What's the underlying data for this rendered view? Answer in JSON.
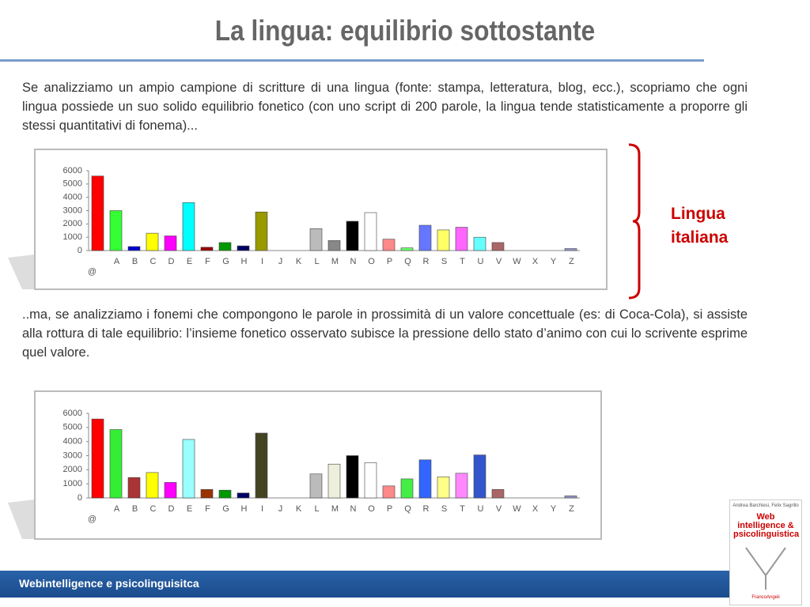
{
  "header": {
    "title": "La lingua: equilibrio sottostante"
  },
  "paragraphs": [
    "Se analizziamo un ampio campione di scritture di una lingua (fonte: stampa, letteratura, blog, ecc.), scopriamo che ogni lingua possiede un suo solido equilibrio fonetico  (con uno script di 200 parole, la lingua tende statisticamente a proporre gli stessi quantitativi di fonema)...",
    "..ma, se analizziamo i fonemi che compongono le parole in prossimità di un valore concettuale (es: di Coca-Cola), si assiste alla rottura di tale equilibrio: l’insieme fonetico osservato subisce la pressione dello stato d’animo con cui lo scrivente esprime quel valore."
  ],
  "bracket_label": "Lingua italiana",
  "footer": "Webintelligence e psicolinguisitca",
  "book": {
    "authors": "Andrea Barchiesi, Felix Sagrillo",
    "title": "Web intelligence & psicolinguistica",
    "publisher": "FrancoAngeli"
  },
  "chart_data": [
    {
      "type": "bar",
      "categories": [
        "@",
        "A",
        "B",
        "C",
        "D",
        "E",
        "F",
        "G",
        "H",
        "I",
        "J",
        "K",
        "L",
        "M",
        "N",
        "O",
        "P",
        "Q",
        "R",
        "S",
        "T",
        "U",
        "V",
        "W",
        "X",
        "Y",
        "Z"
      ],
      "values": [
        5600,
        3000,
        300,
        1300,
        1100,
        3600,
        250,
        600,
        350,
        2900,
        0,
        0,
        1650,
        750,
        2200,
        2850,
        850,
        200,
        1900,
        1550,
        1750,
        1000,
        600,
        0,
        0,
        0,
        150
      ],
      "colors": [
        "#ff0000",
        "#33ff33",
        "#0000cc",
        "#ffff00",
        "#ff00ff",
        "#00ffff",
        "#990000",
        "#009900",
        "#000066",
        "#999900",
        "#ffffff",
        "#ffffff",
        "#bbbbbb",
        "#888888",
        "#000000",
        "#ffffff",
        "#ff8888",
        "#66ff66",
        "#6677ff",
        "#ffff66",
        "#ff66ff",
        "#66ffff",
        "#aa6666",
        "#ffffff",
        "#ffffff",
        "#ffffff",
        "#9999cc"
      ],
      "ylim": [
        0,
        6000
      ],
      "yticks": [
        0,
        1000,
        2000,
        3000,
        4000,
        5000,
        6000
      ]
    },
    {
      "type": "bar",
      "categories": [
        "@",
        "A",
        "B",
        "C",
        "D",
        "E",
        "F",
        "G",
        "H",
        "I",
        "J",
        "K",
        "L",
        "M",
        "N",
        "O",
        "P",
        "Q",
        "R",
        "S",
        "T",
        "U",
        "V",
        "W",
        "X",
        "Y",
        "Z"
      ],
      "values": [
        5600,
        4850,
        1450,
        1800,
        1100,
        4150,
        600,
        550,
        350,
        4600,
        0,
        0,
        1700,
        2400,
        3000,
        2500,
        850,
        1350,
        2700,
        1500,
        1750,
        3050,
        600,
        0,
        0,
        0,
        150
      ],
      "colors": [
        "#ff0000",
        "#33ee33",
        "#aa3333",
        "#ffff00",
        "#ff00ff",
        "#99ffff",
        "#993300",
        "#009900",
        "#000066",
        "#444422",
        "#ffffff",
        "#ffffff",
        "#bbbbbb",
        "#eeeedd",
        "#000000",
        "#ffffff",
        "#ff8888",
        "#44ee44",
        "#3366ff",
        "#ffff88",
        "#ff88ff",
        "#3355cc",
        "#aa6666",
        "#ffffff",
        "#ffffff",
        "#ffffff",
        "#9999cc"
      ],
      "ylim": [
        0,
        6000
      ],
      "yticks": [
        0,
        1000,
        2000,
        3000,
        4000,
        5000,
        6000
      ]
    }
  ]
}
